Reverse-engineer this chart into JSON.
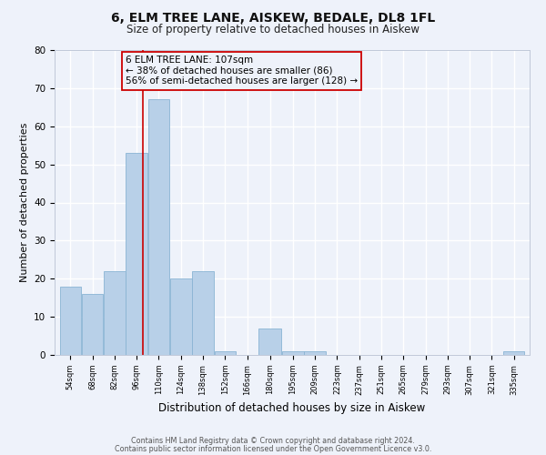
{
  "title": "6, ELM TREE LANE, AISKEW, BEDALE, DL8 1FL",
  "subtitle": "Size of property relative to detached houses in Aiskew",
  "xlabel": "Distribution of detached houses by size in Aiskew",
  "ylabel": "Number of detached properties",
  "bar_color": "#b8d0e8",
  "bar_edgecolor": "#8ab4d4",
  "background_color": "#eef2fa",
  "grid_color": "#ffffff",
  "tick_labels": [
    "54sqm",
    "68sqm",
    "82sqm",
    "96sqm",
    "110sqm",
    "124sqm",
    "138sqm",
    "152sqm",
    "166sqm",
    "180sqm",
    "195sqm",
    "209sqm",
    "223sqm",
    "237sqm",
    "251sqm",
    "265sqm",
    "279sqm",
    "293sqm",
    "307sqm",
    "321sqm",
    "335sqm"
  ],
  "bar_heights": [
    18,
    16,
    22,
    53,
    67,
    20,
    22,
    1,
    0,
    7,
    1,
    1,
    0,
    0,
    0,
    0,
    0,
    0,
    0,
    0,
    1
  ],
  "bin_edges": [
    54,
    68,
    82,
    96,
    110,
    124,
    138,
    152,
    166,
    180,
    195,
    209,
    223,
    237,
    251,
    265,
    279,
    293,
    307,
    321,
    335,
    349
  ],
  "ylim": [
    0,
    80
  ],
  "yticks": [
    0,
    10,
    20,
    30,
    40,
    50,
    60,
    70,
    80
  ],
  "vline_x": 107,
  "vline_color": "#cc0000",
  "annotation_text": "6 ELM TREE LANE: 107sqm\n← 38% of detached houses are smaller (86)\n56% of semi-detached houses are larger (128) →",
  "annotation_box_edgecolor": "#cc0000",
  "annotation_fontsize": 7.5,
  "footer_line1": "Contains HM Land Registry data © Crown copyright and database right 2024.",
  "footer_line2": "Contains public sector information licensed under the Open Government Licence v3.0.",
  "title_fontsize": 10,
  "subtitle_fontsize": 8.5
}
